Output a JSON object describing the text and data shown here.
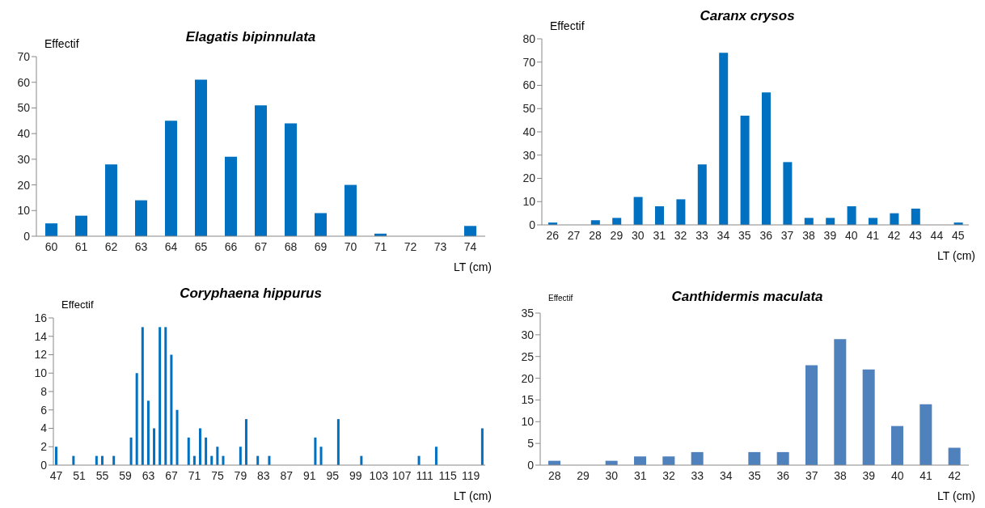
{
  "chart_data": [
    {
      "type": "bar",
      "title": "Elagatis bipinnulata",
      "xlabel": "LT (cm)",
      "ylabel": "Effectif",
      "color": "#0070c0",
      "categories": [
        "60",
        "61",
        "62",
        "63",
        "64",
        "65",
        "66",
        "67",
        "68",
        "69",
        "70",
        "71",
        "72",
        "73",
        "74"
      ],
      "values": [
        5,
        8,
        28,
        14,
        45,
        61,
        31,
        51,
        44,
        9,
        20,
        1,
        0,
        0,
        4
      ],
      "ylim": [
        0,
        70
      ],
      "yticks": [
        0,
        10,
        20,
        30,
        40,
        50,
        60,
        70
      ]
    },
    {
      "type": "bar",
      "title": "Caranx crysos",
      "xlabel": "LT (cm)",
      "ylabel": "Effectif",
      "color": "#0070c0",
      "categories": [
        "26",
        "27",
        "28",
        "29",
        "30",
        "31",
        "32",
        "33",
        "34",
        "35",
        "36",
        "37",
        "38",
        "39",
        "40",
        "41",
        "42",
        "43",
        "44",
        "45"
      ],
      "values": [
        1,
        0,
        2,
        3,
        12,
        8,
        11,
        26,
        74,
        47,
        57,
        27,
        3,
        3,
        8,
        3,
        5,
        7,
        0,
        1
      ],
      "ylim": [
        0,
        80
      ],
      "yticks": [
        0,
        10,
        20,
        30,
        40,
        50,
        60,
        70,
        80
      ]
    },
    {
      "type": "bar",
      "title": "Coryphaena hippurus",
      "xlabel": "LT (cm)",
      "ylabel": "Effectif",
      "color": "#0070c0",
      "categories": [
        "47",
        null,
        null,
        null,
        "51",
        null,
        null,
        null,
        "55",
        null,
        null,
        null,
        "59",
        null,
        null,
        null,
        "63",
        null,
        null,
        null,
        "67",
        null,
        null,
        null,
        "71",
        null,
        null,
        null,
        "75",
        null,
        null,
        null,
        "79",
        null,
        null,
        null,
        "83",
        null,
        null,
        null,
        "87",
        null,
        null,
        null,
        "91",
        null,
        null,
        null,
        "95",
        null,
        null,
        null,
        "99",
        null,
        null,
        null,
        "103",
        null,
        null,
        null,
        "107",
        null,
        null,
        null,
        "111",
        null,
        null,
        null,
        "115",
        null,
        null,
        null,
        "119",
        null,
        null
      ],
      "values": [
        2,
        0,
        0,
        1,
        0,
        0,
        0,
        1,
        1,
        0,
        1,
        0,
        0,
        3,
        10,
        15,
        7,
        4,
        15,
        15,
        12,
        6,
        0,
        3,
        1,
        4,
        3,
        1,
        2,
        1,
        0,
        0,
        2,
        5,
        0,
        1,
        0,
        1,
        0,
        0,
        0,
        0,
        0,
        0,
        0,
        3,
        2,
        0,
        0,
        5,
        0,
        0,
        0,
        1,
        0,
        0,
        0,
        0,
        0,
        0,
        0,
        0,
        0,
        1,
        0,
        0,
        2,
        0,
        0,
        0,
        0,
        0,
        0,
        0,
        4
      ],
      "ylim": [
        0,
        16
      ],
      "yticks": [
        0,
        2,
        4,
        6,
        8,
        10,
        12,
        14,
        16
      ]
    },
    {
      "type": "bar",
      "title": "Canthidermis maculata",
      "xlabel": "LT (cm)",
      "ylabel": "Effectif",
      "color": "#4f81bd",
      "categories": [
        "28",
        "29",
        "30",
        "31",
        "32",
        "33",
        "34",
        "35",
        "36",
        "37",
        "38",
        "39",
        "40",
        "41",
        "42"
      ],
      "values": [
        1,
        0,
        1,
        2,
        2,
        3,
        0,
        3,
        3,
        23,
        29,
        22,
        9,
        14,
        4
      ],
      "ylim": [
        0,
        35
      ],
      "yticks": [
        0,
        5,
        10,
        15,
        20,
        25,
        30,
        35
      ]
    }
  ]
}
